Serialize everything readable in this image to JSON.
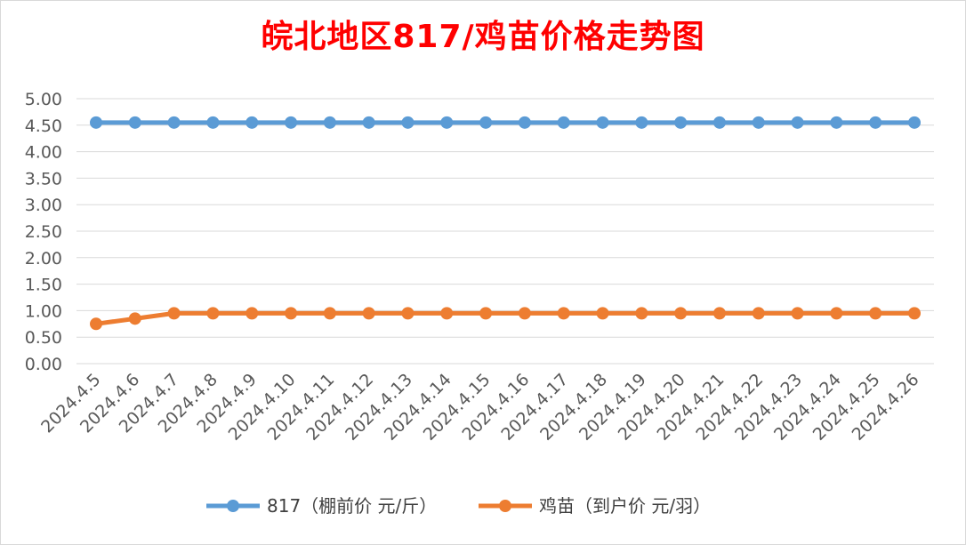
{
  "chart_data": {
    "type": "line",
    "title": "皖北地区817/鸡苗价格走势图",
    "xlabel": "",
    "ylabel": "",
    "categories": [
      "2024.4.5",
      "2024.4.6",
      "2024.4.7",
      "2024.4.8",
      "2024.4.9",
      "2024.4.10",
      "2024.4.11",
      "2024.4.12",
      "2024.4.13",
      "2024.4.14",
      "2024.4.15",
      "2024.4.16",
      "2024.4.17",
      "2024.4.18",
      "2024.4.19",
      "2024.4.20",
      "2024.4.21",
      "2024.4.22",
      "2024.4.23",
      "2024.4.24",
      "2024.4.25",
      "2024.4.26"
    ],
    "ylim": [
      0,
      5
    ],
    "yticks": [
      "0.00",
      "0.50",
      "1.00",
      "1.50",
      "2.00",
      "2.50",
      "3.00",
      "3.50",
      "4.00",
      "4.50",
      "5.00"
    ],
    "grid": true,
    "legend_position": "bottom",
    "series": [
      {
        "name": "817（棚前价 元/斤）",
        "color": "#5b9bd5",
        "values": [
          4.55,
          4.55,
          4.55,
          4.55,
          4.55,
          4.55,
          4.55,
          4.55,
          4.55,
          4.55,
          4.55,
          4.55,
          4.55,
          4.55,
          4.55,
          4.55,
          4.55,
          4.55,
          4.55,
          4.55,
          4.55,
          4.55
        ]
      },
      {
        "name": "鸡苗（到户价 元/羽）",
        "color": "#ed7d31",
        "values": [
          0.75,
          0.85,
          0.95,
          0.95,
          0.95,
          0.95,
          0.95,
          0.95,
          0.95,
          0.95,
          0.95,
          0.95,
          0.95,
          0.95,
          0.95,
          0.95,
          0.95,
          0.95,
          0.95,
          0.95,
          0.95,
          0.95
        ]
      }
    ]
  }
}
